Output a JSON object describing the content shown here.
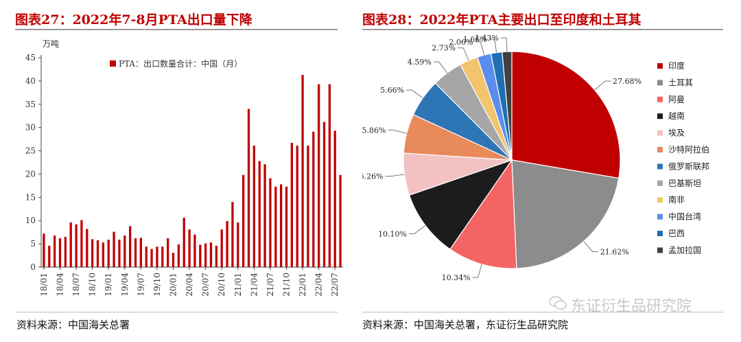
{
  "left": {
    "title": "图表27：2022年7-8月PTA出口量下降",
    "source": "资料来源：中国海关总署"
  },
  "right": {
    "title": "图表28：2022年PTA主要出口至印度和土耳其",
    "source": "资料来源：中国海关总署，东证衍生品研究院"
  },
  "watermark": "东证衍生品研究院",
  "colors": {
    "title": "#c00000",
    "bar": "#c00000"
  },
  "chart_data": [
    {
      "type": "bar",
      "title": "",
      "ylabel": "万吨",
      "ylim": [
        0,
        45
      ],
      "yticks": [
        0,
        5,
        10,
        15,
        20,
        25,
        30,
        35,
        40,
        45
      ],
      "legend": {
        "label": "PTA：出口数量合计：中国（月）",
        "placement": "top"
      },
      "tick_labels": [
        "18/01",
        "18/04",
        "18/07",
        "18/10",
        "19/01",
        "19/04",
        "19/07",
        "19/10",
        "20/01",
        "20/04",
        "20/07",
        "20/10",
        "21/01",
        "21/04",
        "21/07",
        "21/10",
        "22/01",
        "22/04",
        "22/07"
      ],
      "tick_every": 3,
      "categories": [
        "18/01",
        "18/02",
        "18/03",
        "18/04",
        "18/05",
        "18/06",
        "18/07",
        "18/08",
        "18/09",
        "18/10",
        "18/11",
        "18/12",
        "19/01",
        "19/02",
        "19/03",
        "19/04",
        "19/05",
        "19/06",
        "19/07",
        "19/08",
        "19/09",
        "19/10",
        "19/11",
        "19/12",
        "20/01",
        "20/02",
        "20/03",
        "20/04",
        "20/05",
        "20/06",
        "20/07",
        "20/08",
        "20/09",
        "20/10",
        "20/11",
        "20/12",
        "21/01",
        "21/02",
        "21/03",
        "21/04",
        "21/05",
        "21/06",
        "21/07",
        "21/08",
        "21/09",
        "21/10",
        "21/11",
        "21/12",
        "22/01",
        "22/02",
        "22/03",
        "22/04",
        "22/05",
        "22/06",
        "22/07",
        "22/08"
      ],
      "series": [
        {
          "name": "PTA：出口数量合计：中国（月）",
          "values": [
            7.2,
            4.6,
            6.8,
            6.2,
            6.5,
            9.6,
            9.2,
            10.1,
            8.2,
            6.0,
            5.8,
            5.3,
            5.9,
            7.6,
            5.9,
            6.8,
            8.8,
            6.2,
            6.3,
            4.4,
            3.9,
            4.4,
            4.4,
            6.2,
            3.1,
            4.9,
            10.6,
            8.1,
            7.0,
            4.8,
            5.1,
            5.3,
            4.6,
            8.1,
            9.9,
            14.0,
            9.6,
            19.8,
            34.0,
            26.1,
            22.8,
            22.1,
            19.1,
            17.3,
            17.8,
            17.3,
            26.7,
            26.1,
            41.3,
            26.1,
            29.1,
            39.3,
            31.2,
            39.3,
            29.3,
            19.8
          ]
        }
      ]
    },
    {
      "type": "pie",
      "title": "",
      "slices": [
        {
          "label": "印度",
          "value": 27.68,
          "value_label": "27.68%",
          "color": "#c00000"
        },
        {
          "label": "土耳其",
          "value": 21.62,
          "value_label": "21.62%",
          "color": "#8c8c8c"
        },
        {
          "label": "阿曼",
          "value": 10.34,
          "value_label": "10.34%",
          "color": "#f56464"
        },
        {
          "label": "越南",
          "value": 10.1,
          "value_label": "10.10%",
          "color": "#1c1c1c"
        },
        {
          "label": "埃及",
          "value": 6.26,
          "value_label": "6.26%",
          "color": "#f2c2c2"
        },
        {
          "label": "沙特阿拉伯",
          "value": 5.86,
          "value_label": "5.86%",
          "color": "#e88a5a"
        },
        {
          "label": "俄罗斯联邦",
          "value": 5.66,
          "value_label": "5.66%",
          "color": "#2e75b6"
        },
        {
          "label": "巴基斯坦",
          "value": 4.59,
          "value_label": "4.59%",
          "color": "#a6a6a6"
        },
        {
          "label": "南非",
          "value": 2.73,
          "value_label": "2.73%",
          "color": "#f2c46d"
        },
        {
          "label": "中国台湾",
          "value": 2.06,
          "value_label": "2.06%",
          "color": "#5b8def"
        },
        {
          "label": "巴西",
          "value": 1.66,
          "value_label": "1.66%",
          "color": "#1f6fb2"
        },
        {
          "label": "孟加拉国",
          "value": 1.43,
          "value_label": "1.43%",
          "color": "#404040"
        }
      ],
      "legend": {
        "placement": "right"
      }
    }
  ]
}
